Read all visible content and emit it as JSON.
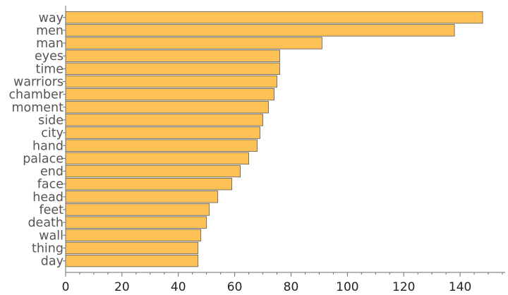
{
  "chart_data": {
    "type": "bar",
    "orientation": "horizontal",
    "title": "",
    "xlabel": "",
    "ylabel": "",
    "categories": [
      "way",
      "men",
      "man",
      "eyes",
      "time",
      "warriors",
      "chamber",
      "moment",
      "side",
      "city",
      "hand",
      "palace",
      "end",
      "face",
      "head",
      "feet",
      "death",
      "wall",
      "thing",
      "day"
    ],
    "values": [
      148,
      138,
      91,
      76,
      76,
      75,
      74,
      72,
      70,
      69,
      68,
      65,
      62,
      59,
      54,
      51,
      50,
      48,
      47,
      47
    ],
    "xlim": [
      0,
      156
    ],
    "xticks": [
      0,
      20,
      40,
      60,
      80,
      100,
      120,
      140
    ],
    "xtick_labels": [
      "0",
      "20",
      "40",
      "60",
      "80",
      "100",
      "120",
      "140"
    ],
    "grid": false,
    "legend": "none",
    "colors": {
      "bar_fill": "#FEC156",
      "bar_stroke": "#5a5a5a",
      "axis": "#6e6e6e",
      "category_text": "#555555",
      "tick_text": "#222222"
    }
  }
}
